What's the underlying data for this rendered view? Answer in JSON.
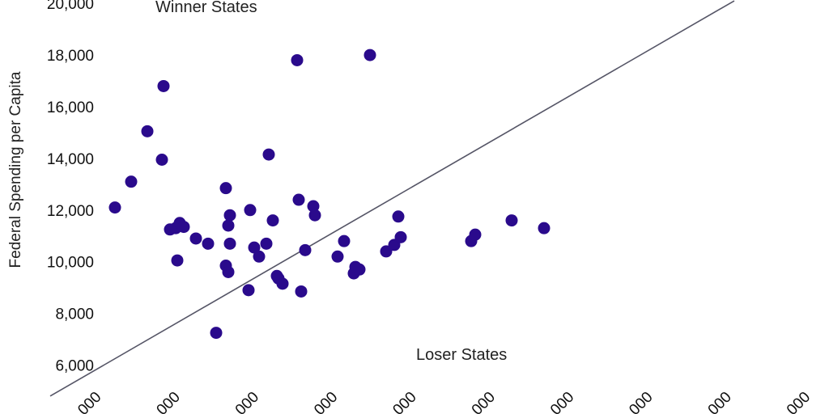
{
  "chart_data": {
    "type": "scatter",
    "title": "",
    "xlabel": "",
    "ylabel": "Federal Spending per Capita",
    "ylim": [
      5000,
      20000
    ],
    "y_ticks": [
      6000,
      8000,
      10000,
      12000,
      14000,
      16000,
      18000,
      20000
    ],
    "y_tick_labels": [
      "6,000",
      "8,000",
      "10,000",
      "12,000",
      "14,000",
      "16,000",
      "18,000",
      "20,000"
    ],
    "x_tick_labels": [
      "000",
      "000",
      "000",
      "000",
      "000",
      "000",
      "000",
      "000",
      "000",
      "000"
    ],
    "grid": false,
    "legend": "none",
    "point_color": "#2a0a8c",
    "line_color": "#555566",
    "annotations": {
      "winner": "Winner States",
      "loser": "Loser States"
    },
    "reference_line": {
      "from": [
        0.4,
        4800
      ],
      "to": [
        8.85,
        20100
      ]
    },
    "points": [
      [
        1.2,
        12100
      ],
      [
        1.4,
        13100
      ],
      [
        1.6,
        15050
      ],
      [
        1.78,
        13950
      ],
      [
        1.8,
        16800
      ],
      [
        1.88,
        11250
      ],
      [
        1.95,
        11300
      ],
      [
        1.97,
        10050
      ],
      [
        2.0,
        11500
      ],
      [
        2.05,
        11350
      ],
      [
        2.2,
        10900
      ],
      [
        2.35,
        10700
      ],
      [
        2.45,
        7250
      ],
      [
        2.57,
        9850
      ],
      [
        2.57,
        12850
      ],
      [
        2.6,
        11400
      ],
      [
        2.6,
        9600
      ],
      [
        2.62,
        11800
      ],
      [
        2.62,
        10700
      ],
      [
        2.85,
        8900
      ],
      [
        2.87,
        12000
      ],
      [
        2.92,
        10550
      ],
      [
        2.98,
        10200
      ],
      [
        3.07,
        10700
      ],
      [
        3.1,
        14150
      ],
      [
        3.15,
        11600
      ],
      [
        3.2,
        9450
      ],
      [
        3.22,
        9350
      ],
      [
        3.27,
        9150
      ],
      [
        3.45,
        17800
      ],
      [
        3.47,
        12400
      ],
      [
        3.5,
        8850
      ],
      [
        3.55,
        10450
      ],
      [
        3.65,
        12150
      ],
      [
        3.67,
        11800
      ],
      [
        3.95,
        10200
      ],
      [
        4.03,
        10800
      ],
      [
        4.15,
        9550
      ],
      [
        4.17,
        9800
      ],
      [
        4.22,
        9700
      ],
      [
        4.35,
        18000
      ],
      [
        4.55,
        10400
      ],
      [
        4.65,
        10650
      ],
      [
        4.7,
        11750
      ],
      [
        4.73,
        10950
      ],
      [
        5.6,
        10800
      ],
      [
        5.65,
        11050
      ],
      [
        6.1,
        11600
      ],
      [
        6.5,
        11300
      ]
    ]
  }
}
